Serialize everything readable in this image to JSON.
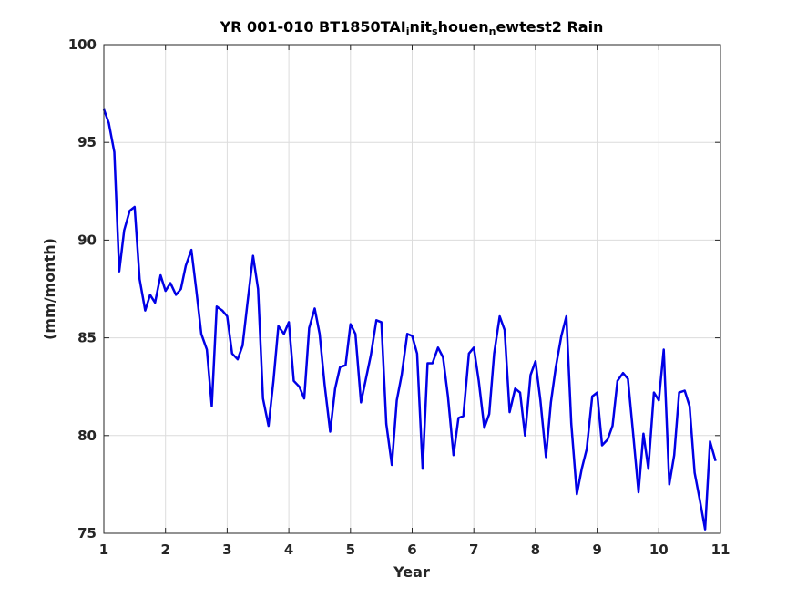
{
  "chart_data": {
    "type": "line",
    "title_parts": [
      "YR 001-010 BT1850TAI",
      "i",
      "nit",
      "s",
      "houen",
      "n",
      "ewtest2 Rain"
    ],
    "xlabel": "Year",
    "ylabel": "(mm/month)",
    "xlim": [
      1,
      11
    ],
    "ylim": [
      75,
      100
    ],
    "xticks": [
      "1",
      "2",
      "3",
      "4",
      "5",
      "6",
      "7",
      "8",
      "9",
      "10",
      "11"
    ],
    "yticks": [
      "75",
      "80",
      "85",
      "90",
      "95",
      "100"
    ],
    "grid": true,
    "line_color": "#0000e6",
    "series": [
      {
        "x": [
          1.0,
          1.08,
          1.17,
          1.25,
          1.33,
          1.42,
          1.5,
          1.58,
          1.67,
          1.75,
          1.83,
          1.92,
          2.0,
          2.08,
          2.17,
          2.25,
          2.33,
          2.42,
          2.5,
          2.58,
          2.67,
          2.75,
          2.83,
          2.92,
          3.0,
          3.08,
          3.17,
          3.25,
          3.33,
          3.42,
          3.5,
          3.58,
          3.67,
          3.75,
          3.83,
          3.92,
          4.0,
          4.08,
          4.17,
          4.25,
          4.33,
          4.42,
          4.5,
          4.58,
          4.67,
          4.75,
          4.83,
          4.92,
          5.0,
          5.08,
          5.17,
          5.25,
          5.33,
          5.42,
          5.5,
          5.58,
          5.67,
          5.75,
          5.83,
          5.92,
          6.0,
          6.08,
          6.17,
          6.25,
          6.33,
          6.42,
          6.5,
          6.58,
          6.67,
          6.75,
          6.83,
          6.92,
          7.0,
          7.08,
          7.17,
          7.25,
          7.33,
          7.42,
          7.5,
          7.58,
          7.67,
          7.75,
          7.83,
          7.92,
          8.0,
          8.08,
          8.17,
          8.25,
          8.33,
          8.42,
          8.5,
          8.58,
          8.67,
          8.75,
          8.83,
          8.92,
          9.0,
          9.08,
          9.17,
          9.25,
          9.33,
          9.42,
          9.5,
          9.58,
          9.67,
          9.75,
          9.83,
          9.92,
          10.0,
          10.08,
          10.17,
          10.25,
          10.33,
          10.42,
          10.5,
          10.58,
          10.67,
          10.75,
          10.83,
          10.92
        ],
        "y": [
          96.7,
          96.0,
          94.5,
          88.4,
          90.5,
          91.5,
          91.7,
          88.0,
          86.4,
          87.2,
          86.8,
          88.2,
          87.4,
          87.8,
          87.2,
          87.5,
          88.7,
          89.5,
          87.4,
          85.2,
          84.4,
          81.5,
          86.6,
          86.4,
          86.1,
          84.2,
          83.9,
          84.6,
          86.8,
          89.2,
          87.5,
          81.9,
          80.5,
          82.8,
          85.6,
          85.2,
          85.8,
          82.8,
          82.5,
          81.9,
          85.5,
          86.5,
          85.2,
          82.6,
          80.2,
          82.4,
          83.5,
          83.6,
          85.7,
          85.2,
          81.7,
          82.9,
          84.1,
          85.9,
          85.8,
          80.6,
          78.5,
          81.8,
          83.1,
          85.2,
          85.1,
          84.2,
          78.3,
          83.7,
          83.7,
          84.5,
          84.0,
          82.0,
          79.0,
          80.9,
          81.0,
          84.2,
          84.5,
          82.8,
          80.4,
          81.1,
          84.2,
          86.1,
          85.4,
          81.2,
          82.4,
          82.2,
          80.0,
          83.1,
          83.8,
          81.8,
          78.9,
          81.7,
          83.5,
          85.1,
          86.1,
          80.6,
          77.0,
          78.3,
          79.3,
          82.0,
          82.2,
          79.5,
          79.8,
          80.5,
          82.8,
          83.2,
          82.9,
          80.2,
          77.1,
          80.1,
          78.3,
          82.2,
          81.8,
          84.4,
          77.5,
          79.0,
          82.2,
          82.3,
          81.5,
          78.1,
          76.6,
          75.2,
          79.7,
          78.7
        ]
      }
    ]
  }
}
